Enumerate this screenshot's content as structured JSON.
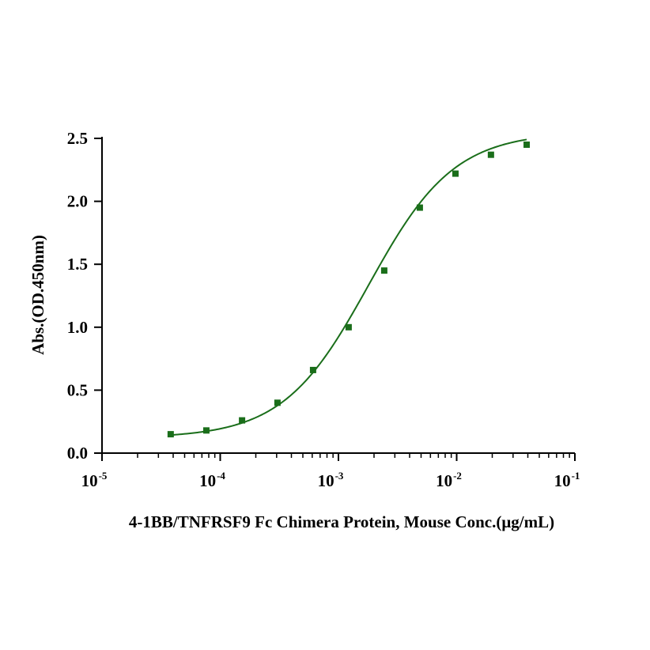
{
  "chart_data": {
    "type": "scatter",
    "xscale": "log",
    "xlabel": "4-1BB/TNFRSF9 Fc Chimera Protein, Mouse Conc.(μg/mL)",
    "ylabel": "Abs.(OD.450nm)",
    "xlim": [
      1e-05,
      0.1
    ],
    "ylim": [
      0,
      2.5
    ],
    "x_ticks": [
      {
        "base": "10",
        "exp": "-5",
        "value": 1e-05
      },
      {
        "base": "10",
        "exp": "-4",
        "value": 0.0001
      },
      {
        "base": "10",
        "exp": "-3",
        "value": 0.001
      },
      {
        "base": "10",
        "exp": "-2",
        "value": 0.01
      },
      {
        "base": "10",
        "exp": "-1",
        "value": 0.1
      }
    ],
    "y_ticks": [
      {
        "label": "0.0",
        "value": 0
      },
      {
        "label": "0.5",
        "value": 0.5
      },
      {
        "label": "1.0",
        "value": 1.0
      },
      {
        "label": "1.5",
        "value": 1.5
      },
      {
        "label": "2.0",
        "value": 2.0
      },
      {
        "label": "2.5",
        "value": 2.5
      }
    ],
    "series": [
      {
        "color": "#1a6e1a",
        "marker": "square",
        "points": [
          {
            "x": 3.81e-05,
            "y": 0.15
          },
          {
            "x": 7.63e-05,
            "y": 0.18
          },
          {
            "x": 0.000153,
            "y": 0.26
          },
          {
            "x": 0.000305,
            "y": 0.4
          },
          {
            "x": 0.00061,
            "y": 0.66
          },
          {
            "x": 0.00122,
            "y": 1.0
          },
          {
            "x": 0.00244,
            "y": 1.45
          },
          {
            "x": 0.00488,
            "y": 1.95
          },
          {
            "x": 0.00977,
            "y": 2.22
          },
          {
            "x": 0.0195,
            "y": 2.37
          },
          {
            "x": 0.0391,
            "y": 2.45
          }
        ],
        "fit": {
          "model": "4PL",
          "bottom": 0.12,
          "top": 2.55,
          "ec50": 0.0018,
          "hill": 1.2,
          "x_range": [
            3.81e-05,
            0.0391
          ]
        }
      }
    ]
  }
}
